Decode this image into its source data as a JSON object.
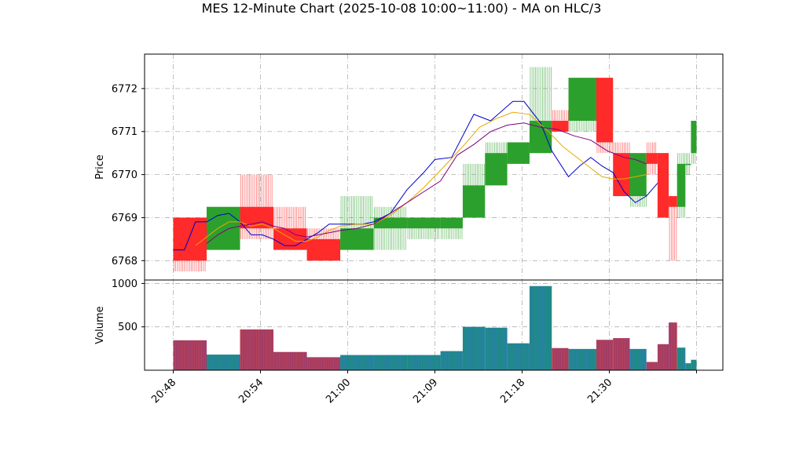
{
  "chart_data": {
    "type": "candlestick",
    "title": "MES 12-Minute Chart (2025-10-08 10:00~11:00) - MA on HLC/3",
    "price_panel": {
      "ylabel": "Price",
      "ylim": [
        6767.55,
        6772.8
      ],
      "yticks": [
        6768,
        6769,
        6770,
        6771,
        6772
      ]
    },
    "volume_panel": {
      "ylabel": "Volume",
      "ylim": [
        0,
        1040
      ],
      "yticks": [
        500,
        1000
      ]
    },
    "xlim": [
      20.25,
      21.92
    ],
    "xticks": [
      {
        "t": 20.48,
        "label": "20:48"
      },
      {
        "t": 20.54,
        "label": "20:54"
      },
      {
        "t": 20.6,
        "label": "21:00"
      },
      {
        "t": 20.69,
        "label": "21:09"
      },
      {
        "t": 20.78,
        "label": "21:18"
      },
      {
        "t": 20.9,
        "label": "21:30"
      },
      {
        "t": 21.0,
        "label": ""
      }
    ],
    "grid": true,
    "candles": [
      {
        "t0": 20.48,
        "t1": 20.6,
        "o": 6769.0,
        "h": 6769.0,
        "l": 6767.75,
        "c": 6768.0,
        "v": 345
      },
      {
        "t0": 20.6,
        "t1": 20.72,
        "o": 6768.25,
        "h": 6769.25,
        "l": 6768.25,
        "c": 6769.25,
        "v": 180
      },
      {
        "t0": 20.72,
        "t1": 20.84,
        "o": 6769.25,
        "h": 6770.0,
        "l": 6768.5,
        "c": 6768.75,
        "v": 470
      },
      {
        "t0": 20.84,
        "t1": 20.96,
        "o": 6768.75,
        "h": 6769.25,
        "l": 6768.25,
        "c": 6768.25,
        "v": 210
      },
      {
        "t0": 20.96,
        "t1": 21.08,
        "o": 6768.5,
        "h": 6768.75,
        "l": 6768.0,
        "c": 6768.0,
        "v": 150
      },
      {
        "t0": 21.08,
        "t1": 21.2,
        "o": 6768.25,
        "h": 6769.5,
        "l": 6768.25,
        "c": 6768.75,
        "v": 175
      },
      {
        "t0": 21.2,
        "t1": 21.32,
        "o": 6768.75,
        "h": 6769.25,
        "l": 6768.25,
        "c": 6769.0,
        "v": 175
      },
      {
        "t0": 21.32,
        "t1": 21.44,
        "o": 6768.75,
        "h": 6769.0,
        "l": 6768.5,
        "c": 6769.0,
        "v": 175
      },
      {
        "t0": 21.44,
        "t1": 21.52,
        "o": 6768.75,
        "h": 6769.0,
        "l": 6768.5,
        "c": 6769.0,
        "v": 220
      },
      {
        "t0": 21.52,
        "t1": 21.6,
        "o": 6769.0,
        "h": 6770.25,
        "l": 6769.0,
        "c": 6769.75,
        "v": 500
      },
      {
        "t0": 21.6,
        "t1": 21.68,
        "o": 6769.75,
        "h": 6770.75,
        "l": 6769.75,
        "c": 6770.5,
        "v": 490
      },
      {
        "t0": 21.68,
        "t1": 21.76,
        "o": 6770.25,
        "h": 6770.75,
        "l": 6770.25,
        "c": 6770.75,
        "v": 310
      },
      {
        "t0": 21.76,
        "t1": 21.84,
        "o": 6770.5,
        "h": 6772.5,
        "l": 6770.5,
        "c": 6771.25,
        "v": 970
      },
      {
        "t0": 21.84,
        "t1": 21.9,
        "o": 6771.25,
        "h": 6771.5,
        "l": 6771.0,
        "c": 6771.0,
        "v": 255
      },
      {
        "t0": 21.9,
        "t1": 22.0,
        "o": 6771.25,
        "h": 6772.25,
        "l": 6771.0,
        "c": 6772.25,
        "v": 245
      },
      {
        "t0": 22.0,
        "t1": 22.06,
        "o": 6772.25,
        "h": 6772.25,
        "l": 6770.5,
        "c": 6770.75,
        "v": 350
      },
      {
        "t0": 22.06,
        "t1": 22.12,
        "o": 6770.5,
        "h": 6770.75,
        "l": 6769.5,
        "c": 6769.5,
        "v": 370
      },
      {
        "t0": 22.12,
        "t1": 22.18,
        "o": 6769.5,
        "h": 6770.5,
        "l": 6769.25,
        "c": 6770.5,
        "v": 245
      },
      {
        "t0": 22.18,
        "t1": 22.22,
        "o": 6770.5,
        "h": 6770.75,
        "l": 6770.0,
        "c": 6770.25,
        "v": 95
      },
      {
        "t0": 22.22,
        "t1": 22.26,
        "o": 6770.5,
        "h": 6770.5,
        "l": 6769.0,
        "c": 6769.0,
        "v": 300
      },
      {
        "t0": 22.26,
        "t1": 22.29,
        "o": 6769.5,
        "h": 6769.5,
        "l": 6768.0,
        "c": 6769.25,
        "v": 550
      },
      {
        "t0": 22.29,
        "t1": 22.32,
        "o": 6769.25,
        "h": 6770.5,
        "l": 6769.0,
        "c": 6770.25,
        "v": 260
      },
      {
        "t0": 22.32,
        "t1": 22.34,
        "o": 6770.25,
        "h": 6770.5,
        "l": 6770.0,
        "c": 6770.25,
        "v": 80
      },
      {
        "t0": 22.34,
        "t1": 22.36,
        "o": 6770.5,
        "h": 6771.25,
        "l": 6770.25,
        "c": 6771.25,
        "v": 120
      }
    ],
    "ma_lines": [
      {
        "color": "#0000cc",
        "points": [
          [
            20.48,
            6768.25
          ],
          [
            20.52,
            6768.25
          ],
          [
            20.56,
            6768.9
          ],
          [
            20.6,
            6768.9
          ],
          [
            20.64,
            6769.05
          ],
          [
            20.68,
            6769.1
          ],
          [
            20.72,
            6768.9
          ],
          [
            20.76,
            6768.6
          ],
          [
            20.8,
            6768.6
          ],
          [
            20.84,
            6768.5
          ],
          [
            20.88,
            6768.35
          ],
          [
            20.92,
            6768.35
          ],
          [
            20.96,
            6768.5
          ],
          [
            21.0,
            6768.65
          ],
          [
            21.04,
            6768.85
          ],
          [
            21.08,
            6768.85
          ],
          [
            21.12,
            6768.85
          ],
          [
            21.16,
            6768.85
          ],
          [
            21.2,
            6768.9
          ],
          [
            21.26,
            6769.1
          ],
          [
            21.32,
            6769.65
          ],
          [
            21.38,
            6770.05
          ],
          [
            21.42,
            6770.35
          ],
          [
            21.48,
            6770.4
          ],
          [
            21.56,
            6771.4
          ],
          [
            21.62,
            6771.25
          ],
          [
            21.7,
            6771.7
          ],
          [
            21.74,
            6771.7
          ],
          [
            21.8,
            6771.2
          ],
          [
            21.84,
            6770.55
          ],
          [
            21.9,
            6769.95
          ],
          [
            21.94,
            6770.2
          ],
          [
            21.98,
            6770.4
          ],
          [
            22.02,
            6770.2
          ],
          [
            22.06,
            6770.05
          ],
          [
            22.1,
            6769.6
          ],
          [
            22.14,
            6769.35
          ],
          [
            22.18,
            6769.5
          ],
          [
            22.22,
            6769.8
          ]
        ]
      },
      {
        "color": "#e6a800",
        "points": [
          [
            20.56,
            6768.35
          ],
          [
            20.6,
            6768.55
          ],
          [
            20.64,
            6768.75
          ],
          [
            20.68,
            6768.9
          ],
          [
            20.72,
            6768.9
          ],
          [
            20.76,
            6768.8
          ],
          [
            20.8,
            6768.85
          ],
          [
            20.84,
            6768.75
          ],
          [
            20.88,
            6768.6
          ],
          [
            20.92,
            6768.45
          ],
          [
            20.96,
            6768.45
          ],
          [
            21.0,
            6768.55
          ],
          [
            21.04,
            6768.7
          ],
          [
            21.08,
            6768.8
          ],
          [
            21.14,
            6768.85
          ],
          [
            21.2,
            6768.85
          ],
          [
            21.26,
            6769.05
          ],
          [
            21.32,
            6769.35
          ],
          [
            21.38,
            6769.7
          ],
          [
            21.44,
            6770.1
          ],
          [
            21.52,
            6770.65
          ],
          [
            21.58,
            6771.1
          ],
          [
            21.64,
            6771.3
          ],
          [
            21.7,
            6771.45
          ],
          [
            21.76,
            6771.4
          ],
          [
            21.82,
            6771.05
          ],
          [
            21.88,
            6770.65
          ],
          [
            21.94,
            6770.35
          ],
          [
            21.98,
            6770.15
          ],
          [
            22.02,
            6769.95
          ],
          [
            22.06,
            6769.9
          ],
          [
            22.1,
            6769.9
          ],
          [
            22.14,
            6769.95
          ],
          [
            22.18,
            6770.0
          ]
        ]
      },
      {
        "color": "#800080",
        "points": [
          [
            20.6,
            6768.4
          ],
          [
            20.64,
            6768.6
          ],
          [
            20.68,
            6768.75
          ],
          [
            20.72,
            6768.8
          ],
          [
            20.76,
            6768.85
          ],
          [
            20.8,
            6768.9
          ],
          [
            20.84,
            6768.8
          ],
          [
            20.88,
            6768.75
          ],
          [
            20.92,
            6768.6
          ],
          [
            20.96,
            6768.55
          ],
          [
            21.0,
            6768.6
          ],
          [
            21.04,
            6768.65
          ],
          [
            21.08,
            6768.7
          ],
          [
            21.14,
            6768.75
          ],
          [
            21.2,
            6768.85
          ],
          [
            21.26,
            6769.1
          ],
          [
            21.32,
            6769.35
          ],
          [
            21.38,
            6769.6
          ],
          [
            21.44,
            6769.85
          ],
          [
            21.5,
            6770.45
          ],
          [
            21.56,
            6770.7
          ],
          [
            21.62,
            6771.0
          ],
          [
            21.68,
            6771.15
          ],
          [
            21.74,
            6771.2
          ],
          [
            21.8,
            6771.1
          ],
          [
            21.86,
            6771.05
          ],
          [
            21.92,
            6770.9
          ],
          [
            21.98,
            6770.8
          ],
          [
            22.04,
            6770.55
          ],
          [
            22.1,
            6770.4
          ],
          [
            22.14,
            6770.35
          ],
          [
            22.18,
            6770.25
          ]
        ]
      }
    ],
    "colors": {
      "up": "#2ca02c",
      "down": "#ff2a2a",
      "volume_up": "#1a8a7a",
      "volume_down": "#9b3a6a",
      "grid": "#b0b0b0"
    }
  }
}
